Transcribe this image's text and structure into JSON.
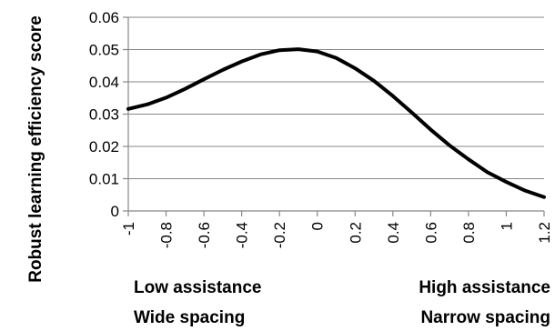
{
  "chart_data": {
    "type": "line",
    "xlabel": "",
    "ylabel": "Robust learning efficiency score",
    "xlim": [
      -1,
      1.2
    ],
    "ylim": [
      0,
      0.06
    ],
    "x_ticks": [
      "-1",
      "-0.8",
      "-0.6",
      "-0.4",
      "-0.2",
      "0",
      "0.2",
      "0.4",
      "0.6",
      "0.8",
      "1",
      "1.2"
    ],
    "y_ticks": [
      "0",
      "0.01",
      "0.02",
      "0.03",
      "0.04",
      "0.05",
      "0.06"
    ],
    "grid": "horizontal",
    "series": [
      {
        "color": "#000000",
        "x": [
          -1,
          -0.9,
          -0.8,
          -0.7,
          -0.6,
          -0.5,
          -0.4,
          -0.3,
          -0.2,
          -0.1,
          0,
          0.1,
          0.2,
          0.3,
          0.4,
          0.5,
          0.6,
          0.7,
          0.8,
          0.9,
          1.0,
          1.1,
          1.2
        ],
        "y": [
          0.0316,
          0.033,
          0.0351,
          0.0378,
          0.0408,
          0.0437,
          0.0463,
          0.0485,
          0.0498,
          0.0501,
          0.0494,
          0.0474,
          0.0442,
          0.0403,
          0.0356,
          0.0305,
          0.0252,
          0.0203,
          0.016,
          0.012,
          0.009,
          0.0063,
          0.0043
        ]
      }
    ],
    "annotations": {
      "left_line1": "Low assistance",
      "left_line2": "Wide spacing",
      "right_line1": "High assistance",
      "right_line2": "Narrow spacing"
    }
  }
}
